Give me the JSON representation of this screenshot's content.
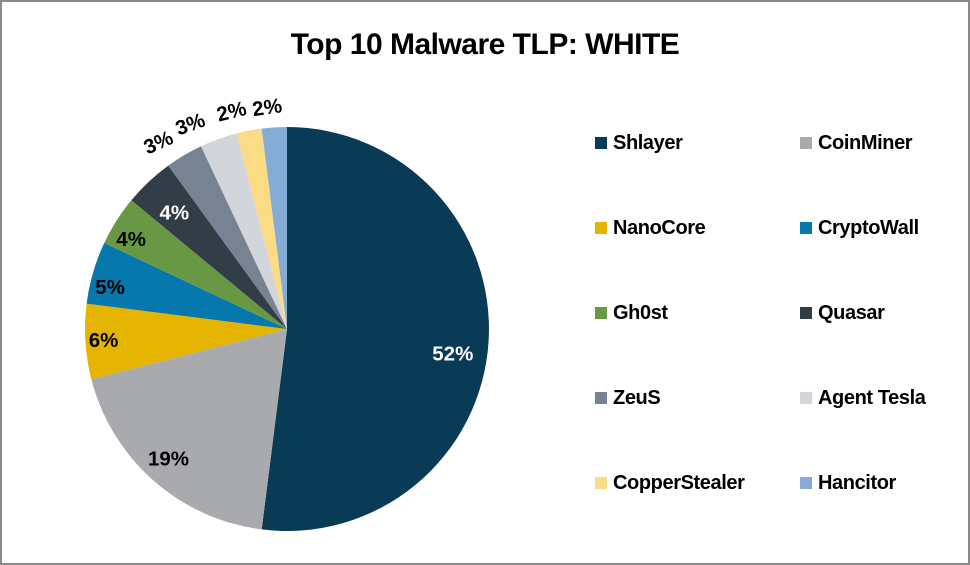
{
  "frame": {
    "background": "#FFFFFF",
    "border_color": "#8A8A8A"
  },
  "title": "Top 10 Malware TLP: WHITE",
  "chart_data": {
    "type": "pie",
    "title": "Top 10 Malware TLP: WHITE",
    "categories": [
      "Shlayer",
      "CoinMiner",
      "NanoCore",
      "CryptoWall",
      "Gh0st",
      "Quasar",
      "ZeuS",
      "Agent Tesla",
      "CopperStealer",
      "Hancitor"
    ],
    "values": [
      52,
      19,
      6,
      5,
      4,
      4,
      3,
      3,
      2,
      2
    ],
    "unit": "percent",
    "colors": [
      "#093A56",
      "#A9AAAE",
      "#E5B400",
      "#0778AB",
      "#699844",
      "#333D47",
      "#778292",
      "#D2D6DB",
      "#FBDC84",
      "#85ACD4"
    ],
    "start_angle_deg": 0,
    "direction": "clockwise",
    "radius_px": 202,
    "slice_labels": [
      {
        "text": "52%",
        "placement": "inside",
        "color": "#FFFFFF",
        "r": 0.83,
        "rotation": 0,
        "angle_offset_deg": 5
      },
      {
        "text": "19%",
        "placement": "inside",
        "color": "#000000",
        "r": 0.87,
        "rotation": 0,
        "angle_offset_deg": 1
      },
      {
        "text": "6%",
        "placement": "inside",
        "color": "#000000",
        "r": 0.91,
        "rotation": 0,
        "angle_offset_deg": 0
      },
      {
        "text": "5%",
        "placement": "inside",
        "color": "#000000",
        "r": 0.9,
        "rotation": 0,
        "angle_offset_deg": -3
      },
      {
        "text": "4%",
        "placement": "inside",
        "color": "#000000",
        "r": 0.89,
        "rotation": 0,
        "angle_offset_deg": -2.5
      },
      {
        "text": "4%",
        "placement": "inside",
        "color": "#FFFFFF",
        "r": 0.8,
        "rotation": 0,
        "angle_offset_deg": -1
      },
      {
        "text": "3%",
        "placement": "outside",
        "color": "#000000",
        "r": 1.12,
        "rotation": -24,
        "angle_offset_deg": -4
      },
      {
        "text": "3%",
        "placement": "outside",
        "color": "#000000",
        "r": 1.12,
        "rotation": -20,
        "angle_offset_deg": -5.5
      },
      {
        "text": "2%",
        "placement": "outside",
        "color": "#000000",
        "r": 1.11,
        "rotation": -14,
        "angle_offset_deg": -3.5
      },
      {
        "text": "2%",
        "placement": "outside",
        "color": "#000000",
        "r": 1.1,
        "rotation": -8,
        "angle_offset_deg": -1.5
      }
    ],
    "legend": {
      "position": "right",
      "columns": 2,
      "entries": [
        {
          "label": "Shlayer",
          "color": "#093A56"
        },
        {
          "label": "CoinMiner",
          "color": "#A9AAAE"
        },
        {
          "label": "NanoCore",
          "color": "#E5B400"
        },
        {
          "label": "CryptoWall",
          "color": "#0778AB"
        },
        {
          "label": "Gh0st",
          "color": "#699844"
        },
        {
          "label": "Quasar",
          "color": "#333D47"
        },
        {
          "label": "ZeuS",
          "color": "#778292"
        },
        {
          "label": "Agent Tesla",
          "color": "#D2D6DB"
        },
        {
          "label": "CopperStealer",
          "color": "#FBDC84"
        },
        {
          "label": "Hancitor",
          "color": "#85ACD4"
        }
      ]
    }
  }
}
